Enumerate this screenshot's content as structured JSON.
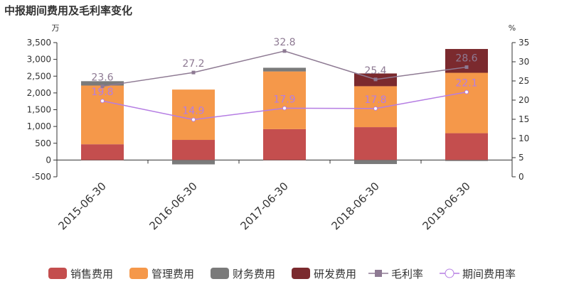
{
  "chart_data": {
    "type": "bar",
    "title": "中报期间费用及毛利率变化",
    "y_left_unit": "万",
    "y_right_unit": "%",
    "categories": [
      "2015-06-30",
      "2016-06-30",
      "2017-06-30",
      "2018-06-30",
      "2019-06-30"
    ],
    "y_left_lim": [
      -500,
      3500
    ],
    "y_left_ticks": [
      "-500",
      "0",
      "500",
      "1,000",
      "1,500",
      "2,000",
      "2,500",
      "3,000",
      "3,500"
    ],
    "y_right_lim": [
      0,
      35
    ],
    "y_right_ticks": [
      "0",
      "5",
      "10",
      "15",
      "20",
      "25",
      "30",
      "35"
    ],
    "bar_series": [
      {
        "name": "销售费用",
        "color": "#c44e4e",
        "values": [
          470,
          600,
          920,
          980,
          800
        ]
      },
      {
        "name": "管理费用",
        "color": "#f5984a",
        "values": [
          1750,
          1500,
          1720,
          1220,
          1800
        ]
      },
      {
        "name": "财务费用",
        "color": "#7a7a7a",
        "values": [
          130,
          -130,
          110,
          -120,
          -30
        ]
      },
      {
        "name": "研发费用",
        "color": "#7b2a2e",
        "values": [
          0,
          0,
          0,
          380,
          710
        ]
      }
    ],
    "line_series": [
      {
        "name": "毛利率",
        "color": "#8e7a93",
        "marker": "square",
        "values": [
          23.6,
          27.2,
          32.8,
          25.4,
          28.6
        ],
        "labels": [
          "23.6",
          "27.2",
          "32.8",
          "25.4",
          "28.6"
        ]
      },
      {
        "name": "期间费用率",
        "color": "#b57de3",
        "marker": "circle",
        "values": [
          19.8,
          14.9,
          17.9,
          17.8,
          22.1
        ],
        "labels": [
          "19.8",
          "14.9",
          "17.9",
          "17.8",
          "22.1"
        ]
      }
    ],
    "legend_position": "bottom",
    "grid": false
  }
}
